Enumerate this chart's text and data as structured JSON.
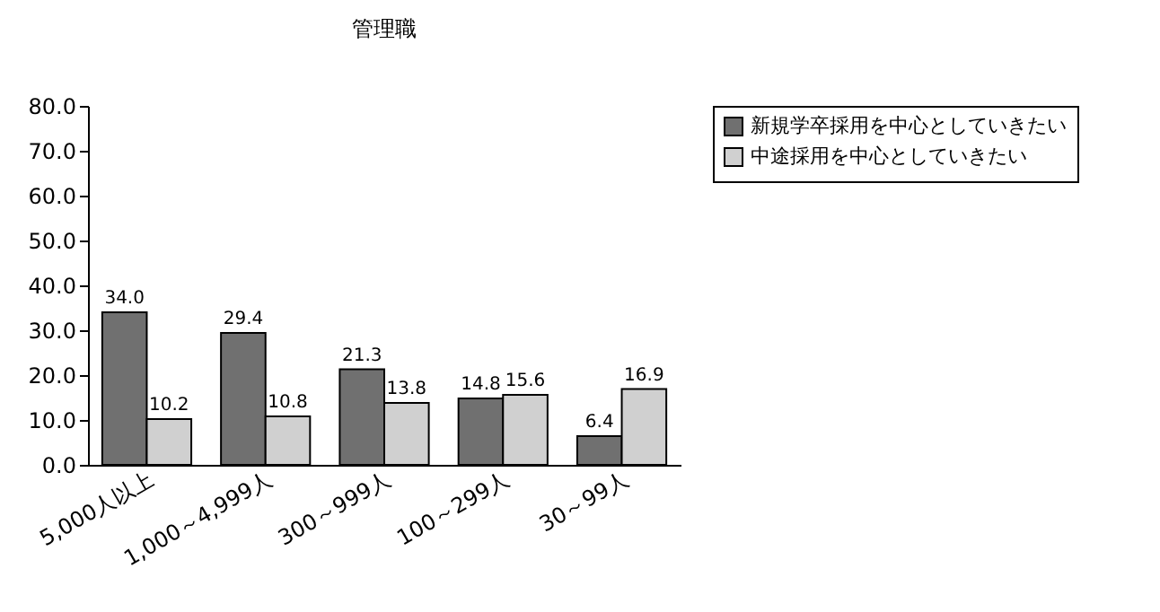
{
  "chart_data": {
    "type": "bar",
    "title": "管理職",
    "categories": [
      "5,000人以上",
      "1,000～4,999人",
      "300～999人",
      "100～299人",
      "30～99人"
    ],
    "series": [
      {
        "name": "新規学卒採用を中心としていきたい",
        "color": "#707070",
        "values": [
          34.0,
          29.4,
          21.3,
          14.8,
          6.4
        ],
        "value_labels": [
          "34.0",
          "29.4",
          "21.3",
          "14.8",
          "6.4"
        ]
      },
      {
        "name": "中途採用を中心としていきたい",
        "color": "#d0d0d0",
        "values": [
          10.2,
          10.8,
          13.8,
          15.6,
          16.9
        ],
        "value_labels": [
          "10.2",
          "10.8",
          "13.8",
          "15.6",
          "16.9"
        ]
      }
    ],
    "ylim": [
      0,
      80
    ],
    "yticks": [
      {
        "value": 0,
        "label": "0.0"
      },
      {
        "value": 10,
        "label": "10.0"
      },
      {
        "value": 20,
        "label": "20.0"
      },
      {
        "value": 30,
        "label": "30.0"
      },
      {
        "value": 40,
        "label": "40.0"
      },
      {
        "value": 50,
        "label": "50.0"
      },
      {
        "value": 60,
        "label": "60.0"
      },
      {
        "value": 70,
        "label": "70.0"
      },
      {
        "value": 80,
        "label": "80.0"
      }
    ],
    "grid": false,
    "legend": "right",
    "data_labels": true
  }
}
